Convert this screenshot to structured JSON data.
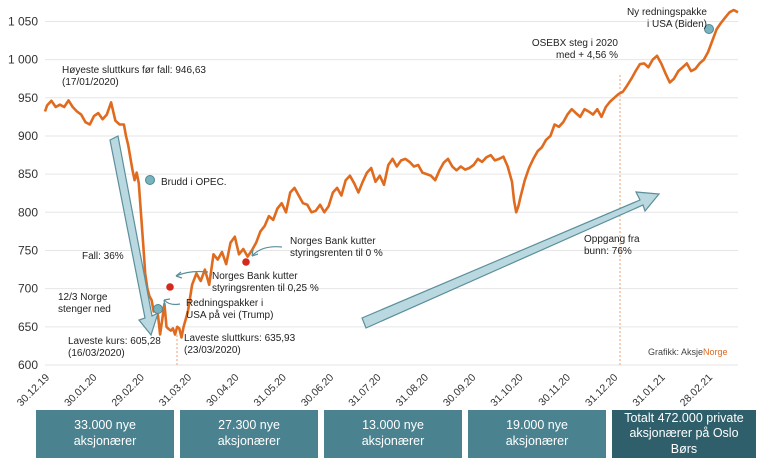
{
  "chart_data": {
    "type": "line",
    "y_ticks": [
      "600",
      "650",
      "700",
      "750",
      "800",
      "850",
      "900",
      "950",
      "1 000",
      "1 050"
    ],
    "ylim": [
      600,
      1065
    ],
    "x_ticks": [
      "30.12.19",
      "30.01.20",
      "29.02.20",
      "31.03.20",
      "30.04.20",
      "31.05.20",
      "30.06.20",
      "31.07.20",
      "31.08.20",
      "30.09.20",
      "31.10.20",
      "30.11.20",
      "31.12.20",
      "31.01.21",
      "28.02.21"
    ],
    "series": [
      {
        "values": [
          [
            0,
            932
          ],
          [
            1,
            940
          ],
          [
            3,
            946
          ],
          [
            5,
            938
          ],
          [
            7,
            941
          ],
          [
            9,
            938
          ],
          [
            11,
            946.63
          ],
          [
            13,
            938
          ],
          [
            15,
            932
          ],
          [
            17,
            928
          ],
          [
            19,
            918
          ],
          [
            21,
            915
          ],
          [
            23,
            926
          ],
          [
            25,
            930
          ],
          [
            27,
            922
          ],
          [
            29,
            928
          ],
          [
            31,
            944
          ],
          [
            33,
            920
          ],
          [
            35,
            915
          ],
          [
            37,
            915
          ],
          [
            38,
            900
          ],
          [
            39,
            888
          ],
          [
            40,
            872
          ],
          [
            41,
            856
          ],
          [
            42,
            842
          ],
          [
            43,
            852
          ],
          [
            44,
            838
          ],
          [
            46,
            760
          ],
          [
            47,
            720
          ],
          [
            48,
            700
          ],
          [
            49,
            690
          ],
          [
            50,
            685
          ],
          [
            51,
            670
          ],
          [
            52,
            672
          ],
          [
            53,
            665
          ],
          [
            54,
            640
          ],
          [
            55,
            660
          ],
          [
            56,
            680
          ],
          [
            57,
            650
          ],
          [
            58,
            647
          ],
          [
            59,
            645
          ],
          [
            60,
            648
          ],
          [
            61,
            640
          ],
          [
            62,
            650
          ],
          [
            63,
            648
          ],
          [
            64,
            636
          ],
          [
            65,
            650
          ],
          [
            67,
            670
          ],
          [
            69,
            705
          ],
          [
            71,
            720
          ],
          [
            73,
            710
          ],
          [
            75,
            725
          ],
          [
            77,
            705
          ],
          [
            79,
            745
          ],
          [
            81,
            738
          ],
          [
            83,
            748
          ],
          [
            85,
            732
          ],
          [
            87,
            760
          ],
          [
            89,
            768
          ],
          [
            91,
            745
          ],
          [
            93,
            752
          ],
          [
            95,
            742
          ],
          [
            97,
            750
          ],
          [
            99,
            760
          ],
          [
            101,
            775
          ],
          [
            103,
            782
          ],
          [
            105,
            795
          ],
          [
            107,
            790
          ],
          [
            109,
            805
          ],
          [
            111,
            812
          ],
          [
            113,
            800
          ],
          [
            115,
            826
          ],
          [
            117,
            832
          ],
          [
            119,
            822
          ],
          [
            121,
            812
          ],
          [
            123,
            810
          ],
          [
            125,
            800
          ],
          [
            127,
            802
          ],
          [
            129,
            810
          ],
          [
            131,
            800
          ],
          [
            133,
            808
          ],
          [
            135,
            826
          ],
          [
            137,
            832
          ],
          [
            139,
            822
          ],
          [
            141,
            842
          ],
          [
            143,
            848
          ],
          [
            145,
            838
          ],
          [
            147,
            826
          ],
          [
            149,
            840
          ],
          [
            151,
            852
          ],
          [
            153,
            858
          ],
          [
            155,
            840
          ],
          [
            157,
            848
          ],
          [
            159,
            836
          ],
          [
            161,
            862
          ],
          [
            163,
            870
          ],
          [
            165,
            860
          ],
          [
            167,
            868
          ],
          [
            169,
            870
          ],
          [
            171,
            866
          ],
          [
            173,
            860
          ],
          [
            175,
            862
          ],
          [
            177,
            852
          ],
          [
            179,
            850
          ],
          [
            181,
            848
          ],
          [
            183,
            842
          ],
          [
            185,
            855
          ],
          [
            187,
            865
          ],
          [
            189,
            870
          ],
          [
            191,
            860
          ],
          [
            193,
            855
          ],
          [
            195,
            860
          ],
          [
            197,
            856
          ],
          [
            199,
            858
          ],
          [
            201,
            862
          ],
          [
            203,
            870
          ],
          [
            205,
            866
          ],
          [
            207,
            872
          ],
          [
            209,
            875
          ],
          [
            211,
            868
          ],
          [
            213,
            870
          ],
          [
            215,
            873
          ],
          [
            217,
            860
          ],
          [
            219,
            840
          ],
          [
            220,
            815
          ],
          [
            221,
            800
          ],
          [
            222,
            808
          ],
          [
            223,
            820
          ],
          [
            225,
            842
          ],
          [
            227,
            858
          ],
          [
            229,
            870
          ],
          [
            231,
            880
          ],
          [
            233,
            885
          ],
          [
            235,
            895
          ],
          [
            237,
            900
          ],
          [
            239,
            915
          ],
          [
            241,
            912
          ],
          [
            243,
            918
          ],
          [
            245,
            928
          ],
          [
            247,
            935
          ],
          [
            249,
            930
          ],
          [
            251,
            925
          ],
          [
            253,
            935
          ],
          [
            255,
            932
          ],
          [
            257,
            928
          ],
          [
            259,
            935
          ],
          [
            261,
            925
          ],
          [
            263,
            938
          ],
          [
            265,
            945
          ],
          [
            267,
            950
          ],
          [
            269,
            955
          ],
          [
            271,
            958
          ],
          [
            273,
            966
          ],
          [
            275,
            975
          ],
          [
            277,
            985
          ],
          [
            279,
            994
          ],
          [
            281,
            995
          ],
          [
            283,
            990
          ],
          [
            285,
            1000
          ],
          [
            287,
            1005
          ],
          [
            289,
            995
          ],
          [
            291,
            982
          ],
          [
            293,
            970
          ],
          [
            295,
            975
          ],
          [
            297,
            985
          ],
          [
            299,
            990
          ],
          [
            301,
            995
          ],
          [
            303,
            985
          ],
          [
            305,
            988
          ],
          [
            307,
            995
          ],
          [
            309,
            1000
          ],
          [
            311,
            1010
          ],
          [
            313,
            1025
          ],
          [
            315,
            1040
          ],
          [
            317,
            1048
          ],
          [
            319,
            1055
          ],
          [
            321,
            1062
          ],
          [
            323,
            1065
          ],
          [
            325,
            1062
          ]
        ]
      }
    ],
    "annotations": {
      "high_label": [
        "Høyeste sluttkurs før fall: 946,63",
        "(17/01/2020)"
      ],
      "opec": "Brudd i OPEC.",
      "fall": "Fall: 36%",
      "norge": [
        "12/3 Norge",
        "stenger ned"
      ],
      "lowest_close": [
        "Laveste kurs: 605,28",
        "(16/03/2020)"
      ],
      "lowest_close2": [
        "Laveste sluttkurs: 635,93",
        "(23/03/2020)"
      ],
      "rate025": [
        "Norges Bank kutter",
        "styringsrenten til 0,25 %"
      ],
      "rate0": [
        "Norges Bank kutter",
        "styringsrenten til 0 %"
      ],
      "packages": [
        "Redningspakker i",
        "USA på vei (Trump)"
      ],
      "recovery": [
        "Oppgang fra",
        "bunn: 76%"
      ],
      "osebx": [
        "OSEBX steg i 2020",
        "med + 4,56 %"
      ],
      "usa": [
        "Ny redningspakke",
        "i USA (Biden)"
      ],
      "credit_prefix": "Grafikk: Aksje",
      "credit_suffix": "Norge"
    },
    "colors": {
      "line": "#e06b1f",
      "arrow": "#5b8f9b",
      "marker": "#d42a1e",
      "box": "#4a8290",
      "box_total": "#2f5f6b"
    }
  },
  "boxes": [
    "33.000 nye aksjonærer",
    "27.300 nye aksjonærer",
    "13.000 nye aksjonærer",
    "19.000 nye aksjonærer",
    "Totalt 472.000 private aksjonærer på Oslo Børs"
  ]
}
